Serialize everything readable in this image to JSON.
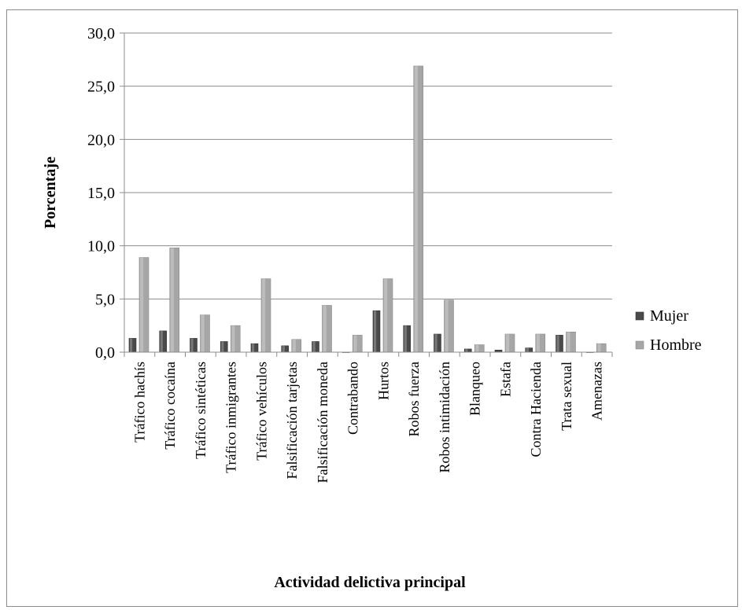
{
  "chart_data": {
    "type": "bar",
    "xlabel": "Actividad delictiva principal",
    "ylabel": "Porcentaje",
    "ylim": [
      0,
      30
    ],
    "yticks": [
      "0,0",
      "5,0",
      "10,0",
      "15,0",
      "20,0",
      "25,0",
      "30,0"
    ],
    "grid": true,
    "legend_position": "right",
    "categories": [
      "Tráfico hachís",
      "Tráfico cocaína",
      "Tráfico sintéticas",
      "Tráfico inmigrantes",
      "Tráfico vehículos",
      "Falsificación tarjetas",
      "Falsificación moneda",
      "Contrabando",
      "Hurtos",
      "Robos fuerza",
      "Robos intimidación",
      "Blanqueo",
      "Estafa",
      "Contra Hacienda",
      "Trata sexual",
      "Amenazas"
    ],
    "series": [
      {
        "name": "Mujer",
        "color": "#4a4a4a",
        "values": [
          1.3,
          2.0,
          1.3,
          1.0,
          0.8,
          0.6,
          1.0,
          0.0,
          3.9,
          2.5,
          1.7,
          0.3,
          0.2,
          0.4,
          1.6,
          0.0
        ]
      },
      {
        "name": "Hombre",
        "color": "#a6a6a6",
        "values": [
          8.9,
          9.8,
          3.5,
          2.5,
          6.9,
          1.2,
          4.4,
          1.6,
          6.9,
          26.9,
          4.9,
          0.7,
          1.7,
          1.7,
          1.9,
          0.8
        ]
      }
    ]
  }
}
